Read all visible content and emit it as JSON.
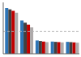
{
  "chart_data": {
    "type": "bar",
    "categories": [
      null,
      null,
      null,
      null,
      null
    ],
    "series": [
      {
        "color": "#2E75B6",
        "values": [
          165,
          120,
          48,
          44,
          43
        ]
      },
      {
        "color": "#404040",
        "values": [
          160,
          112,
          46,
          43,
          42
        ]
      },
      {
        "color": "#C00000",
        "values": [
          155,
          105,
          44,
          42,
          41
        ]
      },
      {
        "color": "#AEAAAA",
        "values": [
          148,
          95,
          42,
          41,
          40
        ]
      }
    ],
    "ylim": [
      0,
      185
    ],
    "grid": false,
    "tick_labels": false,
    "reference_line": {
      "value": 80,
      "color": "#b0b0b0",
      "line_style": "dashed"
    }
  }
}
